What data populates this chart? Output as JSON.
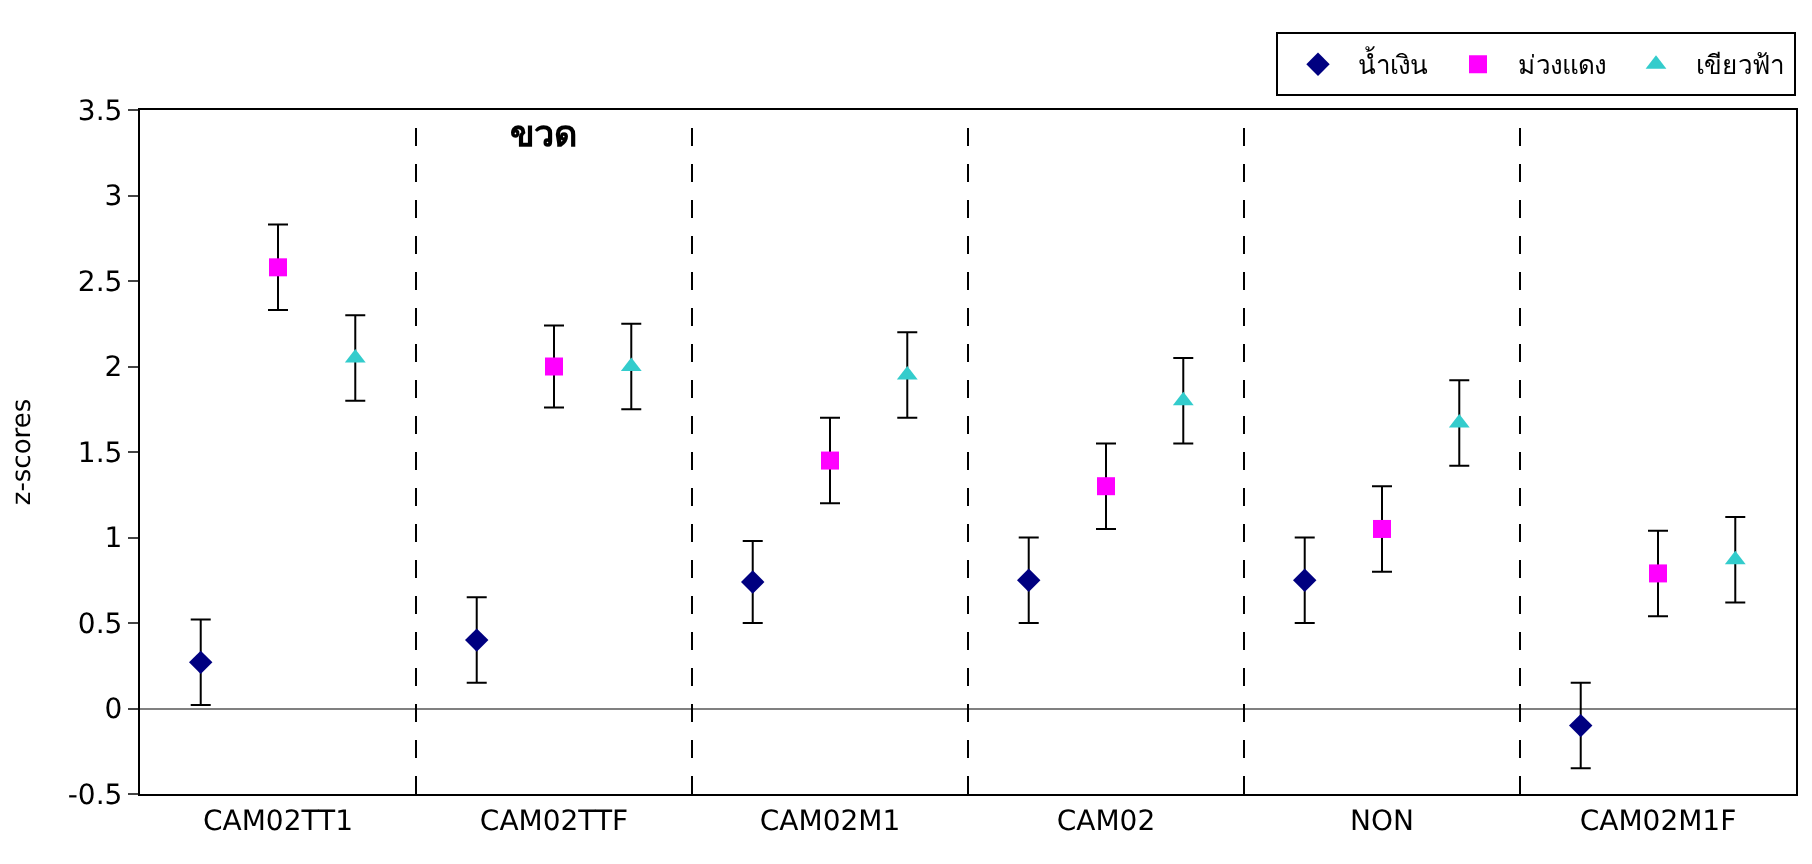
{
  "chart_data": {
    "type": "scatter",
    "title": "ขวด",
    "ylabel": "z-scores",
    "categories": [
      "CAM02TT1",
      "CAM02TTF",
      "CAM02M1",
      "CAM02",
      "NON",
      "CAM02M1F"
    ],
    "series": [
      {
        "name": "น้ำเงิน",
        "color": "#000080",
        "marker": "diamond",
        "values": [
          0.27,
          0.4,
          0.74,
          0.75,
          0.75,
          -0.1
        ],
        "errors": [
          0.25,
          0.25,
          0.24,
          0.25,
          0.25,
          0.25
        ]
      },
      {
        "name": "ม่วงแดง",
        "color": "#ff00ff",
        "marker": "square",
        "values": [
          2.58,
          2.0,
          1.45,
          1.3,
          1.05,
          0.79
        ],
        "errors": [
          0.25,
          0.24,
          0.25,
          0.25,
          0.25,
          0.25
        ]
      },
      {
        "name": "เขียวฟ้า",
        "color": "#33cccc",
        "marker": "triangle",
        "values": [
          2.05,
          2.0,
          1.95,
          1.8,
          1.67,
          0.87
        ],
        "errors": [
          0.25,
          0.25,
          0.25,
          0.25,
          0.25,
          0.25
        ]
      }
    ],
    "ylim": [
      -0.5,
      3.5
    ],
    "yticks": [
      -0.5,
      0,
      0.5,
      1,
      1.5,
      2,
      2.5,
      3,
      3.5
    ],
    "grid": "x",
    "legend": "top right"
  }
}
